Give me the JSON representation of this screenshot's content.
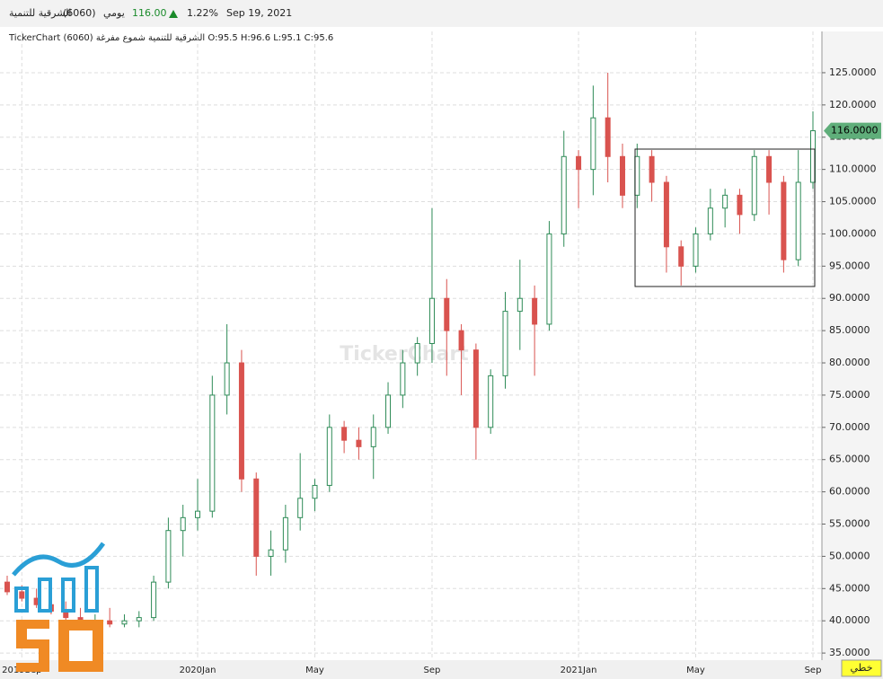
{
  "header": {
    "name": "الشرقية للتنمية",
    "code": "(6060)",
    "period": "يومي",
    "price": "116.00",
    "change": "1.22%",
    "date": "Sep 19, 2021"
  },
  "chart_data": {
    "type": "candlestick",
    "legend_text": "TickerChart الشرقية للتنمية شموع مفرغة (6060) O:95.5 H:96.6 L:95.1 C:95.6",
    "watermark": "TickerChart",
    "price_tag": "116.0000",
    "chart_style_button": "خطي",
    "up_color": "#2e8b57",
    "down_color": "#d9534f",
    "grid": true,
    "categories": [
      null,
      "2019Sep",
      null,
      null,
      null,
      null,
      null,
      null,
      null,
      null,
      null,
      null,
      null,
      "2020Jan",
      null,
      null,
      null,
      null,
      null,
      null,
      null,
      "May",
      null,
      null,
      null,
      null,
      null,
      null,
      null,
      "Sep",
      null,
      null,
      null,
      null,
      null,
      null,
      null,
      null,
      null,
      "2021Jan",
      null,
      null,
      null,
      null,
      null,
      null,
      null,
      "May",
      null,
      null,
      null,
      null,
      null,
      null,
      null,
      "Sep"
    ],
    "open": [
      46,
      44.5,
      43.5,
      42.5,
      41.5,
      40.5,
      39.5,
      40,
      39.5,
      40,
      40.5,
      46,
      54,
      56,
      57,
      75,
      80,
      62,
      50,
      51,
      56,
      59,
      61,
      70,
      68,
      67,
      70,
      75,
      80,
      83,
      90,
      85,
      82,
      70,
      78,
      88,
      90,
      86,
      100,
      112,
      110,
      118,
      112,
      106,
      112,
      108,
      98,
      95,
      100,
      104,
      106,
      103,
      112,
      108,
      96,
      108
    ],
    "high": [
      47,
      45.5,
      45,
      43.5,
      43,
      42,
      41,
      42,
      41,
      41.5,
      47,
      56,
      58,
      62,
      78,
      86,
      82,
      63,
      54,
      58,
      66,
      62,
      72,
      71,
      70,
      72,
      77,
      82,
      84,
      104,
      93,
      86,
      83,
      79,
      91,
      96,
      92,
      102,
      116,
      113,
      123,
      125,
      114,
      114,
      113,
      109,
      99,
      101,
      107,
      107,
      107,
      113,
      113,
      109,
      113,
      119
    ],
    "low": [
      44,
      43,
      42,
      41,
      40,
      38.5,
      38,
      39,
      39,
      39,
      40,
      45,
      50,
      54,
      56,
      72,
      60,
      47,
      47,
      49,
      54,
      57,
      60,
      66,
      65,
      62,
      69,
      73,
      78,
      80,
      78,
      75,
      65,
      69,
      76,
      82,
      78,
      85,
      98,
      104,
      106,
      108,
      104,
      104,
      105,
      94,
      92,
      94,
      99,
      101,
      100,
      102,
      103,
      94,
      95,
      107
    ],
    "close": [
      44.5,
      43.5,
      42.5,
      41.5,
      40.5,
      39.5,
      40,
      39.5,
      40,
      40.5,
      46,
      54,
      56,
      57,
      75,
      80,
      62,
      50,
      51,
      56,
      59,
      61,
      70,
      68,
      67,
      70,
      75,
      80,
      83,
      90,
      85,
      82,
      70,
      78,
      88,
      90,
      86,
      100,
      112,
      110,
      118,
      112,
      106,
      112,
      108,
      98,
      95,
      100,
      104,
      106,
      103,
      112,
      108,
      96,
      108,
      116
    ],
    "ylim": [
      33.9,
      131.4
    ],
    "yticks": [
      {
        "value": 35,
        "label": "35.0000"
      },
      {
        "value": 40,
        "label": "40.0000"
      },
      {
        "value": 45,
        "label": "45.0000"
      },
      {
        "value": 50,
        "label": "50.0000"
      },
      {
        "value": 55,
        "label": "55.0000"
      },
      {
        "value": 60,
        "label": "60.0000"
      },
      {
        "value": 65,
        "label": "65.0000"
      },
      {
        "value": 70,
        "label": "70.0000"
      },
      {
        "value": 75,
        "label": "75.0000"
      },
      {
        "value": 80,
        "label": "80.0000"
      },
      {
        "value": 85,
        "label": "85.0000"
      },
      {
        "value": 90,
        "label": "90.0000"
      },
      {
        "value": 95,
        "label": "95.0000"
      },
      {
        "value": 100,
        "label": "100.0000"
      },
      {
        "value": 105,
        "label": "105.0000"
      },
      {
        "value": 110,
        "label": "110.0000"
      },
      {
        "value": 115,
        "label": "115.0000"
      },
      {
        "value": 120,
        "label": "120.0000"
      },
      {
        "value": 125,
        "label": "125.0000"
      }
    ]
  }
}
